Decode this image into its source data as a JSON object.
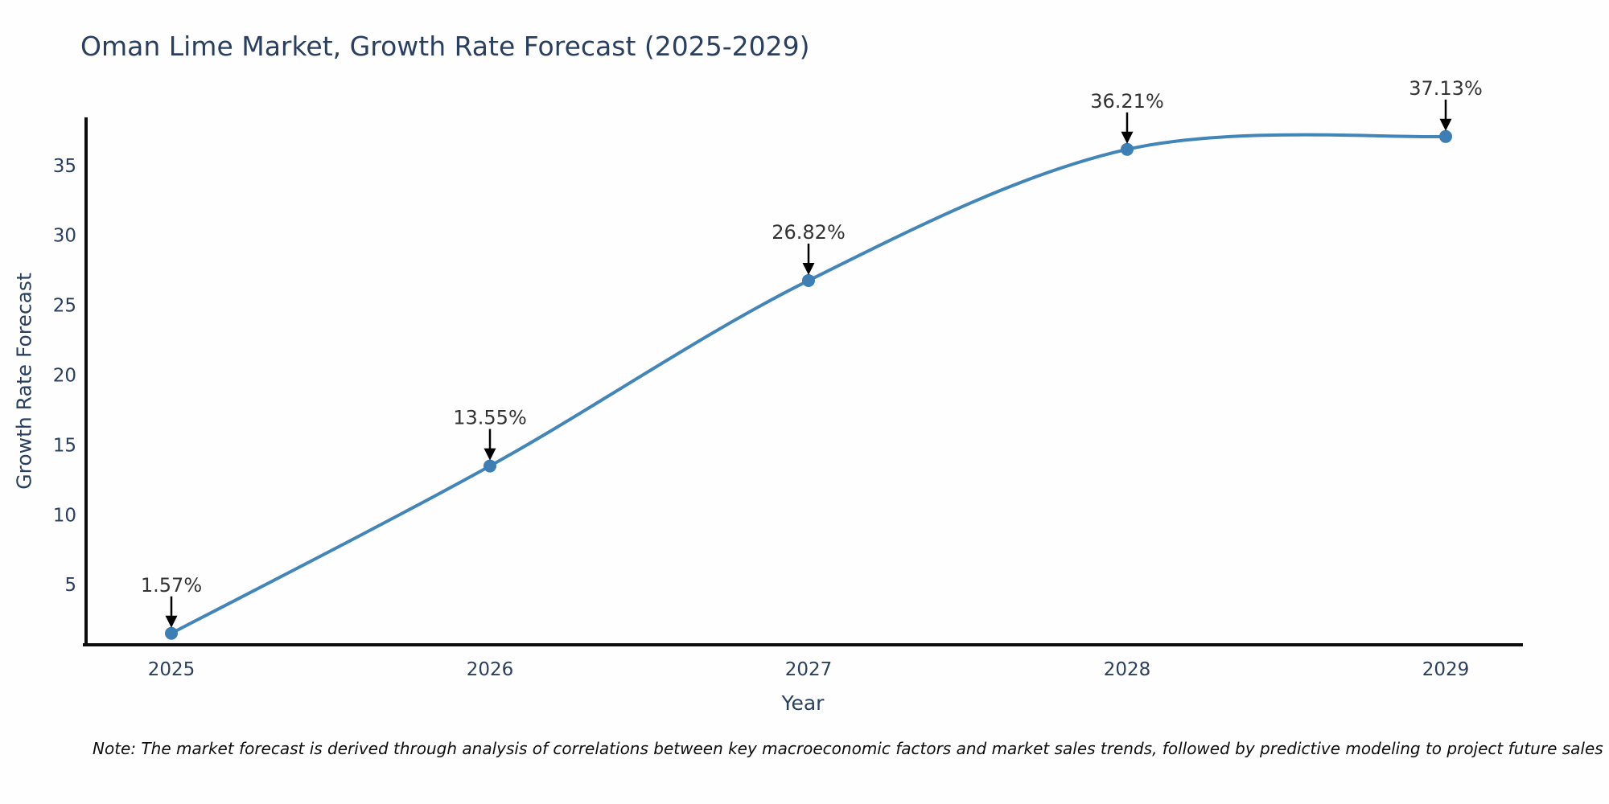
{
  "title": "Oman Lime Market, Growth Rate Forecast (2025-2029)",
  "note": "Note: The market forecast is derived through analysis of correlations between key macroeconomic factors and market sales trends, followed by predictive modeling to project future sales",
  "chart_data": {
    "type": "line",
    "title": "Oman Lime Market, Growth Rate Forecast (2025-2029)",
    "xlabel": "Year",
    "ylabel": "Growth Rate Forecast",
    "categories": [
      "2025",
      "2026",
      "2027",
      "2028",
      "2029"
    ],
    "series": [
      {
        "name": "Growth Rate Forecast",
        "values": [
          1.57,
          13.55,
          26.82,
          36.21,
          37.13
        ]
      }
    ],
    "point_labels": [
      "1.57%",
      "13.55%",
      "26.82%",
      "36.21%",
      "37.13%"
    ],
    "y_ticks": [
      5,
      10,
      15,
      20,
      25,
      30,
      35
    ],
    "ylim": [
      0.75,
      38.5
    ],
    "line_shape": "spline",
    "grid": false,
    "legend": "none",
    "colors": {
      "line": "#4285b8",
      "marker": "#3d7eb5",
      "axis": "#0d0d0d",
      "tick_text": "#2a3f5f",
      "annotation_text": "#333333",
      "annotation_arrow": "#000000",
      "title_text": "#2a3f5f"
    }
  }
}
